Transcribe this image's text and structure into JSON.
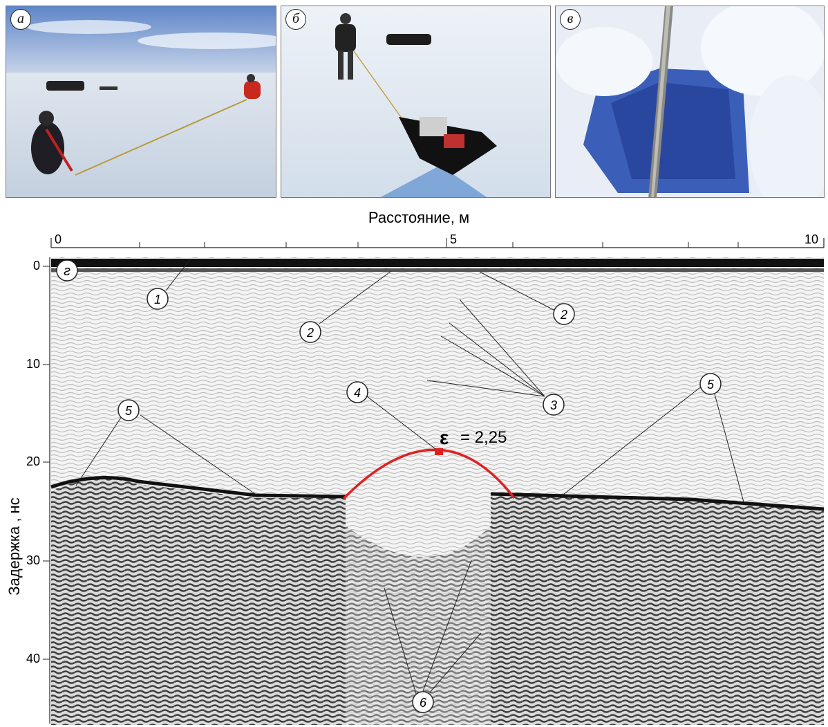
{
  "panels": [
    {
      "id": "a",
      "letter": "а"
    },
    {
      "id": "b",
      "letter": "б"
    },
    {
      "id": "c",
      "letter": "в"
    }
  ],
  "radargram": {
    "letter": "г",
    "x_axis_title": "Расстояние, м",
    "y_axis_title": "Задержка , нс",
    "x_ticks": [
      "0",
      "5",
      "10"
    ],
    "y_ticks": [
      "0",
      "10",
      "20",
      "30",
      "40"
    ],
    "epsilon_symbol": "ε",
    "epsilon_text": "= 2,25",
    "epsilon_value": 2.25,
    "hyperbola_color": "#e02020",
    "callouts": [
      "1",
      "2",
      "2",
      "3",
      "4",
      "5",
      "5",
      "6"
    ]
  }
}
